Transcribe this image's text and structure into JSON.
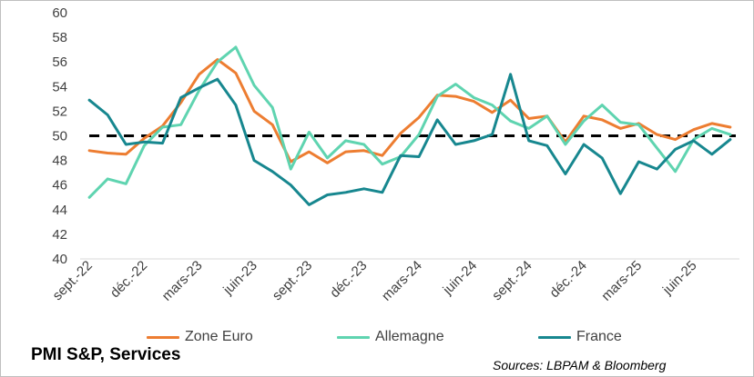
{
  "chart_data": {
    "type": "line",
    "title": "PMI S&P, Services",
    "source": "Sources: LBPAM & Bloomberg",
    "ylim": [
      40,
      60
    ],
    "yticks": [
      40,
      42,
      44,
      46,
      48,
      50,
      52,
      54,
      56,
      58,
      60
    ],
    "xtick_labels": [
      "sept.-22",
      "déc.-22",
      "mars-23",
      "juin-23",
      "sept.-23",
      "déc.-23",
      "mars-24",
      "juin-24",
      "sept.-24",
      "déc.-24",
      "mars-25",
      "juin-25"
    ],
    "months": [
      "2022-09",
      "2022-10",
      "2022-11",
      "2022-12",
      "2023-01",
      "2023-02",
      "2023-03",
      "2023-04",
      "2023-05",
      "2023-06",
      "2023-07",
      "2023-08",
      "2023-09",
      "2023-10",
      "2023-11",
      "2023-12",
      "2024-01",
      "2024-02",
      "2024-03",
      "2024-04",
      "2024-05",
      "2024-06",
      "2024-07",
      "2024-08",
      "2024-09",
      "2024-10",
      "2024-11",
      "2024-12",
      "2025-01",
      "2025-02",
      "2025-03",
      "2025-04",
      "2025-05",
      "2025-06",
      "2025-07",
      "2025-08"
    ],
    "reference_line": {
      "value": 50,
      "style": "dashed",
      "color": "#000000"
    },
    "grid": false,
    "legend_position": "bottom",
    "series": [
      {
        "name": "Zone Euro",
        "color": "#ed7d31",
        "values": [
          48.8,
          48.6,
          48.5,
          49.8,
          50.8,
          52.7,
          55.0,
          56.2,
          55.1,
          52.0,
          50.9,
          47.9,
          48.7,
          47.8,
          48.7,
          48.8,
          48.4,
          50.2,
          51.5,
          53.3,
          53.2,
          52.8,
          51.9,
          52.9,
          51.4,
          51.6,
          49.5,
          51.6,
          51.3,
          50.6,
          51.0,
          50.1,
          49.7,
          50.5,
          51.0,
          50.7
        ]
      },
      {
        "name": "Allemagne",
        "color": "#5fd4b0",
        "values": [
          45.0,
          46.5,
          46.1,
          49.2,
          50.7,
          50.9,
          53.7,
          56.0,
          57.2,
          54.1,
          52.3,
          47.3,
          50.3,
          48.2,
          49.6,
          49.3,
          47.7,
          48.3,
          50.1,
          53.2,
          54.2,
          53.1,
          52.5,
          51.2,
          50.6,
          51.6,
          49.3,
          51.2,
          52.5,
          51.1,
          50.9,
          49.0,
          47.1,
          49.7,
          50.6,
          50.1
        ]
      },
      {
        "name": "France",
        "color": "#17878f",
        "values": [
          52.9,
          51.7,
          49.3,
          49.5,
          49.4,
          53.1,
          53.9,
          54.6,
          52.5,
          48.0,
          47.1,
          46.0,
          44.4,
          45.2,
          45.4,
          45.7,
          45.4,
          48.4,
          48.3,
          51.3,
          49.3,
          49.6,
          50.1,
          55.0,
          49.6,
          49.2,
          46.9,
          49.3,
          48.2,
          45.3,
          47.9,
          47.3,
          48.9,
          49.6,
          48.5,
          49.7
        ]
      }
    ]
  }
}
